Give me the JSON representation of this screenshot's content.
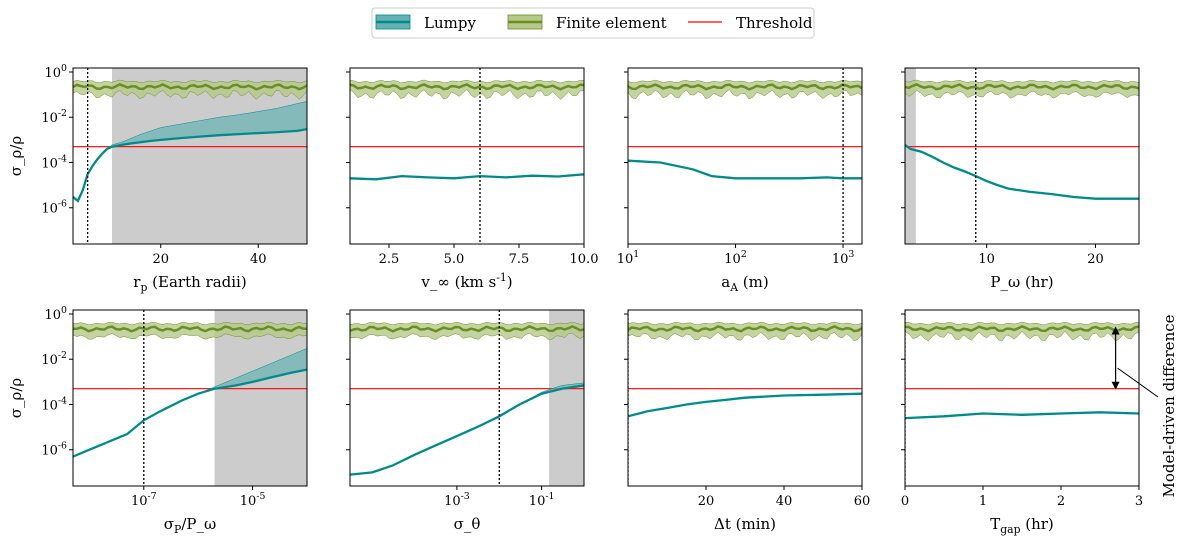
{
  "legend": {
    "items": [
      {
        "label": "Lumpy",
        "color": "#008b8b"
      },
      {
        "label": "Finite element",
        "color": "#6b8e23"
      },
      {
        "label": "Threshold",
        "color": "#ff0000"
      }
    ]
  },
  "shared": {
    "ylabel": "σ_ρ/ρ",
    "yscale": "log",
    "ylim": [
      2.5e-08,
      1.5
    ],
    "yticks": [
      1,
      0.01,
      0.0001,
      1e-06
    ],
    "ytick_labels": [
      "10^0",
      "10^-2",
      "10^-4",
      "10^-6"
    ],
    "threshold": 0.0005,
    "fe_center": 0.22,
    "fe_band": [
      0.12,
      0.38
    ],
    "colors": {
      "lumpy": "#008b8b",
      "lumpy_band": "#66b2b2",
      "fe": "#6b8e23",
      "fe_band": "#b5c98a",
      "threshold": "#ff0000",
      "shade": "#cccccc"
    }
  },
  "annotation": {
    "text": "Model-driven difference",
    "arrow_from": 0.28,
    "arrow_to": 0.00045
  },
  "chart_data": [
    {
      "type": "line",
      "panel": 1,
      "xlabel": "r_p (Earth radii)",
      "xscale": "linear",
      "xlim": [
        2,
        50
      ],
      "xticks": [
        20,
        40
      ],
      "xtick_labels": [
        "20",
        "40"
      ],
      "vline": 5,
      "shade": [
        10,
        50
      ],
      "lumpy": {
        "x": [
          2,
          3,
          4,
          5,
          6,
          7,
          8,
          9,
          10,
          12,
          14,
          16,
          18,
          20,
          24,
          28,
          32,
          36,
          40,
          44,
          48,
          50
        ],
        "y": [
          3e-06,
          2e-06,
          6e-06,
          3e-05,
          7e-05,
          0.00014,
          0.00025,
          0.0004,
          0.0005,
          0.0006,
          0.0007,
          0.0008,
          0.0009,
          0.001,
          0.0012,
          0.0014,
          0.0016,
          0.0018,
          0.002,
          0.0022,
          0.0025,
          0.003
        ],
        "upper": [
          3e-06,
          2e-06,
          6e-06,
          3e-05,
          7e-05,
          0.00014,
          0.00025,
          0.0004,
          0.0006,
          0.0008,
          0.0012,
          0.0018,
          0.0025,
          0.0035,
          0.005,
          0.007,
          0.01,
          0.013,
          0.018,
          0.025,
          0.04,
          0.05
        ]
      }
    },
    {
      "type": "line",
      "panel": 2,
      "xlabel": "v_∞ (km s^-1)",
      "xscale": "linear",
      "xlim": [
        1,
        10
      ],
      "xticks": [
        2.5,
        5.0,
        7.5,
        10.0
      ],
      "xtick_labels": [
        "2.5",
        "5.0",
        "7.5",
        "10.0"
      ],
      "vline": 6,
      "shade": null,
      "lumpy": {
        "x": [
          1,
          2,
          3,
          4,
          5,
          6,
          7,
          8,
          9,
          10
        ],
        "y": [
          2e-05,
          1.8e-05,
          2.5e-05,
          2.2e-05,
          2e-05,
          2.5e-05,
          2.2e-05,
          2.6e-05,
          2.4e-05,
          3e-05
        ],
        "upper": null
      }
    },
    {
      "type": "line",
      "panel": 3,
      "xlabel": "a_A (m)",
      "xscale": "log",
      "xlim": [
        10,
        1500
      ],
      "xticks": [
        10,
        100,
        1000
      ],
      "xtick_labels": [
        "10^1",
        "10^2",
        "10^3"
      ],
      "vline": 1000,
      "shade": null,
      "lumpy": {
        "x": [
          10,
          20,
          40,
          60,
          100,
          200,
          400,
          700,
          1000,
          1500
        ],
        "y": [
          0.00012,
          0.0001,
          5e-05,
          2.5e-05,
          2e-05,
          2e-05,
          2e-05,
          2.2e-05,
          2e-05,
          2e-05
        ],
        "upper": null
      }
    },
    {
      "type": "line",
      "panel": 4,
      "xlabel": "P_ω (hr)",
      "xscale": "linear",
      "xlim": [
        2.5,
        24
      ],
      "xticks": [
        10,
        20
      ],
      "xtick_labels": [
        "10",
        "20"
      ],
      "vline": 9,
      "shade": [
        2.5,
        3.5
      ],
      "lumpy": {
        "x": [
          2.5,
          3,
          4,
          5,
          6,
          7,
          8,
          9,
          10,
          11,
          12,
          14,
          16,
          18,
          20,
          22,
          24
        ],
        "y": [
          0.0006,
          0.0004,
          0.0003,
          0.00018,
          0.0001,
          6e-05,
          4e-05,
          2.5e-05,
          1.5e-05,
          1e-05,
          7e-06,
          5e-06,
          4e-06,
          3e-06,
          2.5e-06,
          2.5e-06,
          2.5e-06
        ],
        "upper": null
      }
    },
    {
      "type": "line",
      "panel": 5,
      "xlabel": "σ_P/P_ω",
      "xscale": "log",
      "xlim": [
        5e-09,
        0.0001
      ],
      "xticks": [
        1e-07,
        1e-05
      ],
      "xtick_labels": [
        "10^-7",
        "10^-5"
      ],
      "vline": 1e-07,
      "shade": [
        2e-06,
        0.0001
      ],
      "lumpy": {
        "x": [
          5e-09,
          1e-08,
          2e-08,
          5e-08,
          1e-07,
          2e-07,
          5e-07,
          1e-06,
          2e-06,
          5e-06,
          1e-05,
          2e-05,
          5e-05,
          0.0001
        ],
        "y": [
          5e-07,
          1e-06,
          2e-06,
          5e-06,
          2e-05,
          5e-05,
          0.00015,
          0.0003,
          0.0005,
          0.0007,
          0.001,
          0.0015,
          0.0025,
          0.0035
        ],
        "upper": [
          5e-07,
          1e-06,
          2e-06,
          5e-06,
          2e-05,
          5e-05,
          0.00015,
          0.0003,
          0.0006,
          0.0015,
          0.003,
          0.006,
          0.015,
          0.03
        ]
      }
    },
    {
      "type": "line",
      "panel": 6,
      "xlabel": "σ_θ",
      "xscale": "log",
      "xlim": [
        3e-06,
        1
      ],
      "xticks": [
        0.001,
        0.1
      ],
      "xtick_labels": [
        "10^-3",
        "10^-1"
      ],
      "vline": 0.01,
      "shade": [
        0.15,
        1
      ],
      "lumpy": {
        "x": [
          3e-06,
          1e-05,
          3e-05,
          0.0001,
          0.0003,
          0.001,
          0.003,
          0.01,
          0.03,
          0.1,
          0.3,
          1
        ],
        "y": [
          8e-08,
          1e-07,
          2e-07,
          6e-07,
          1.5e-06,
          4e-06,
          1e-05,
          3e-05,
          0.0001,
          0.0003,
          0.0005,
          0.0007
        ],
        "upper": [
          8e-08,
          1e-07,
          2e-07,
          6e-07,
          1.5e-06,
          4e-06,
          1e-05,
          3e-05,
          0.0001,
          0.00035,
          0.0007,
          0.0009
        ]
      }
    },
    {
      "type": "line",
      "panel": 7,
      "xlabel": "Δt (min)",
      "xscale": "linear",
      "xlim": [
        0,
        60
      ],
      "xticks": [
        20,
        40,
        60
      ],
      "xtick_labels": [
        "20",
        "40",
        "60"
      ],
      "vline": 0,
      "shade": null,
      "lumpy": {
        "x": [
          0,
          5,
          10,
          15,
          20,
          25,
          30,
          40,
          50,
          60
        ],
        "y": [
          3e-05,
          5e-05,
          7e-05,
          0.0001,
          0.00013,
          0.00016,
          0.0002,
          0.00025,
          0.00027,
          0.0003
        ],
        "upper": null
      }
    },
    {
      "type": "line",
      "panel": 8,
      "xlabel": "T_gap (hr)",
      "xscale": "linear",
      "xlim": [
        0,
        3
      ],
      "xticks": [
        0,
        1,
        2,
        3
      ],
      "xtick_labels": [
        "0",
        "1",
        "2",
        "3"
      ],
      "vline": 0,
      "shade": null,
      "lumpy": {
        "x": [
          0,
          0.5,
          1,
          1.5,
          2,
          2.5,
          3
        ],
        "y": [
          2.5e-05,
          3e-05,
          4e-05,
          3.5e-05,
          4e-05,
          4.5e-05,
          4e-05
        ],
        "upper": null
      }
    }
  ]
}
